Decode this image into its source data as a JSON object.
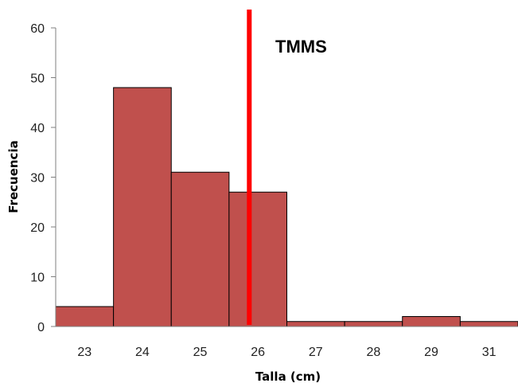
{
  "chart_data": {
    "type": "bar",
    "categories": [
      "23",
      "24",
      "25",
      "26",
      "27",
      "28",
      "29",
      "31"
    ],
    "values": [
      4,
      48,
      31,
      27,
      1,
      1,
      2,
      1
    ],
    "xlabel": "Talla (cm)",
    "ylabel": "Frecuencia",
    "ylim": [
      0,
      60
    ],
    "yticks": [
      0,
      10,
      20,
      30,
      40,
      50,
      60
    ],
    "grid": false,
    "legend": "none",
    "bar_color": "#C0504D",
    "bar_edge_color": "#000000",
    "reference_line": {
      "label": "TMMS",
      "x": 25.85,
      "color": "#FF0000"
    }
  }
}
